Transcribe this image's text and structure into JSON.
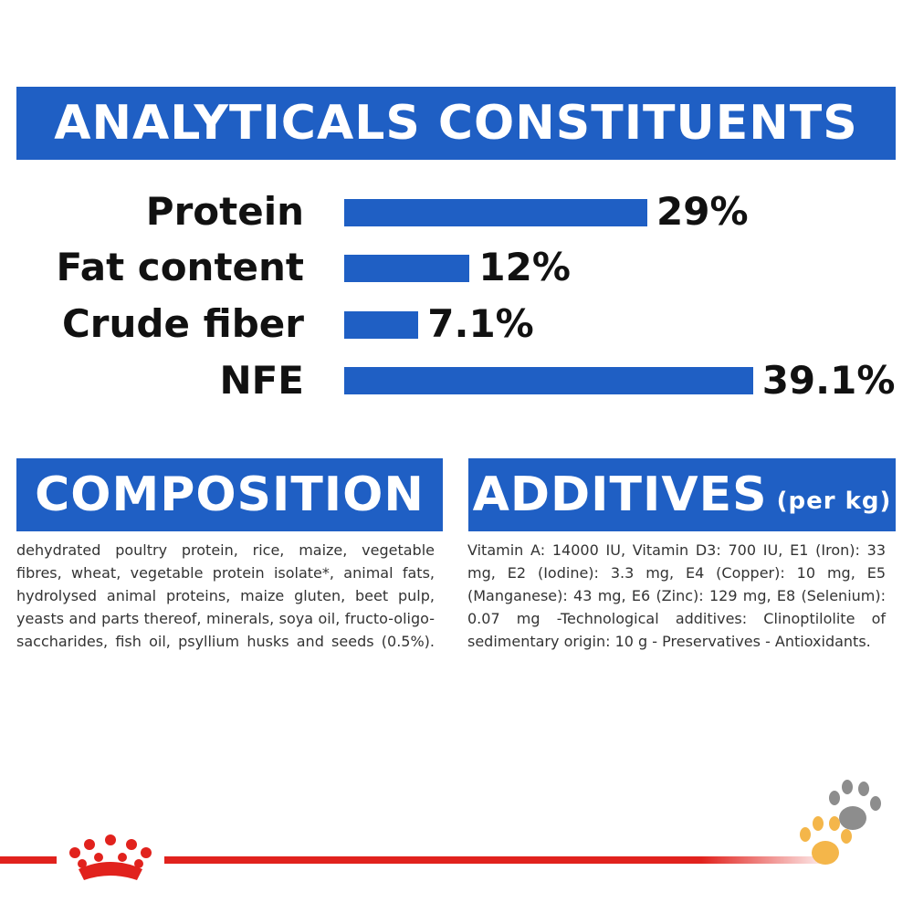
{
  "analytics": {
    "title": "ANALYTICALS CONSTITUENTS",
    "rows": [
      {
        "label": "Protein",
        "value_text": "29%",
        "value": 29
      },
      {
        "label": "Fat content",
        "value_text": "12%",
        "value": 12
      },
      {
        "label": "Crude fiber",
        "value_text": "7.1%",
        "value": 7.1
      },
      {
        "label": "NFE",
        "value_text": "39.1%",
        "value": 39.1
      }
    ]
  },
  "composition": {
    "title": "COMPOSITION",
    "text": "dehydrated poultry protein, rice, maize, vegetable fibres, wheat, vegetable protein isolate*, animal fats, hydrolysed animal proteins, maize gluten, beet pulp, yeasts and parts thereof, minerals, soya oil, fructo-oligo-saccharides, fish oil, psyllium husks and seeds (0.5%)."
  },
  "additives": {
    "title": "ADDITIVES",
    "unit": "(per kg)",
    "text": "Vitamin A: 14000 IU, Vitamin D3: 700 IU, E1 (Iron): 33 mg, E2 (Iodine): 3.3 mg, E4 (Copper): 10 mg, E5 (Manganese): 43 mg, E6 (Zinc): 129 mg, E8 (Selenium): 0.07 mg -Technological additives: Clinoptilolite of sedimentary origin: 10 g - Preservatives - Antioxidants."
  },
  "colors": {
    "brand_blue": "#1f5fc4",
    "brand_red": "#e1221d"
  },
  "icons": {
    "brand": "crown-icon",
    "paws": "paw-prints-icon"
  }
}
